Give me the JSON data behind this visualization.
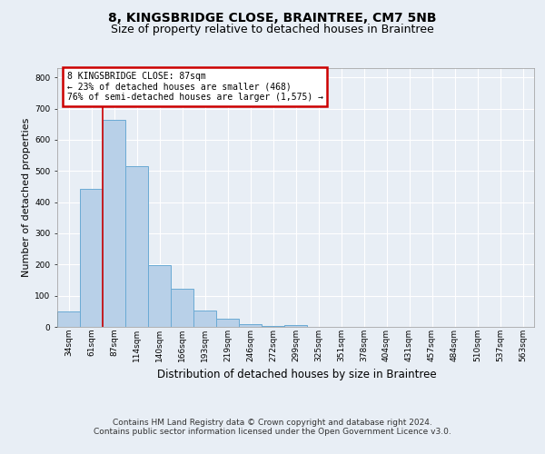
{
  "title": "8, KINGSBRIDGE CLOSE, BRAINTREE, CM7 5NB",
  "subtitle": "Size of property relative to detached houses in Braintree",
  "xlabel": "Distribution of detached houses by size in Braintree",
  "ylabel": "Number of detached properties",
  "bar_labels": [
    "34sqm",
    "61sqm",
    "87sqm",
    "114sqm",
    "140sqm",
    "166sqm",
    "193sqm",
    "219sqm",
    "246sqm",
    "272sqm",
    "299sqm",
    "325sqm",
    "351sqm",
    "378sqm",
    "404sqm",
    "431sqm",
    "457sqm",
    "484sqm",
    "510sqm",
    "537sqm",
    "563sqm"
  ],
  "bar_values": [
    50,
    443,
    665,
    515,
    197,
    123,
    52,
    27,
    8,
    2,
    5,
    0,
    0,
    0,
    0,
    0,
    0,
    0,
    0,
    0,
    0
  ],
  "bar_color": "#b8d0e8",
  "bar_edge_color": "#6aaad4",
  "red_line_x": 2,
  "annotation_text": "8 KINGSBRIDGE CLOSE: 87sqm\n← 23% of detached houses are smaller (468)\n76% of semi-detached houses are larger (1,575) →",
  "annotation_box_color": "#ffffff",
  "annotation_box_edge": "#cc0000",
  "ylim": [
    0,
    830
  ],
  "yticks": [
    0,
    100,
    200,
    300,
    400,
    500,
    600,
    700,
    800
  ],
  "background_color": "#e8eef5",
  "plot_bg_color": "#e8eef5",
  "grid_color": "#ffffff",
  "footer_line1": "Contains HM Land Registry data © Crown copyright and database right 2024.",
  "footer_line2": "Contains public sector information licensed under the Open Government Licence v3.0.",
  "title_fontsize": 10,
  "subtitle_fontsize": 9,
  "xlabel_fontsize": 8.5,
  "ylabel_fontsize": 8,
  "tick_fontsize": 6.5,
  "annotation_fontsize": 7,
  "footer_fontsize": 6.5
}
